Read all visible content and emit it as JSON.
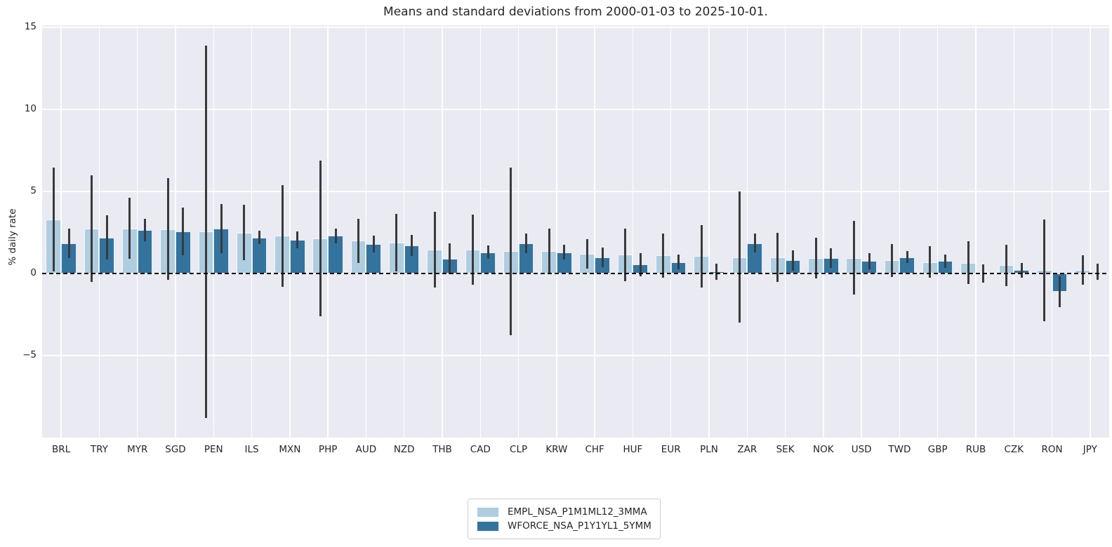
{
  "title": "Means and standard deviations from 2000-01-03 to 2025-10-01.",
  "ylabel": "% daily rate",
  "colors": {
    "plot_background": "#eaeaf2",
    "gridline": "#ffffff",
    "error_bar": "#3a3a3a",
    "zero_line": "#000000",
    "text": "#262626",
    "legend_border": "#cccccc",
    "legend_background": "#ffffff"
  },
  "chart_data": {
    "type": "bar",
    "title": "Means and standard deviations from 2000-01-03 to 2025-10-01.",
    "xlabel": "",
    "ylabel": "% daily rate",
    "ylim": [
      -10.0,
      15.13
    ],
    "yticks": [
      {
        "v": 15,
        "label": "15"
      },
      {
        "v": 10,
        "label": "10"
      },
      {
        "v": 5,
        "label": "5"
      },
      {
        "v": 0,
        "label": "0"
      },
      {
        "v": -5,
        "label": "−5"
      }
    ],
    "grid": true,
    "zero_line_dashed": true,
    "legend_position": "lower center",
    "categories": [
      "BRL",
      "TRY",
      "MYR",
      "SGD",
      "PEN",
      "ILS",
      "MXN",
      "PHP",
      "AUD",
      "NZD",
      "THB",
      "CAD",
      "CLP",
      "KRW",
      "CHF",
      "HUF",
      "EUR",
      "PLN",
      "ZAR",
      "SEK",
      "NOK",
      "USD",
      "TWD",
      "GBP",
      "RUB",
      "CZK",
      "RON",
      "JPY"
    ],
    "series": [
      {
        "name": "EMPL_NSA_P1M1ML12_3MMA",
        "color": "#aecde1",
        "means": [
          3.3,
          2.75,
          2.75,
          2.7,
          2.55,
          2.5,
          2.3,
          2.15,
          2.0,
          1.9,
          1.45,
          1.45,
          1.35,
          1.35,
          1.2,
          1.15,
          1.1,
          1.05,
          1.0,
          1.0,
          0.95,
          0.95,
          0.8,
          0.7,
          0.65,
          0.5,
          0.2,
          0.2
        ],
        "sds": [
          3.15,
          3.25,
          1.85,
          3.1,
          11.35,
          1.7,
          3.1,
          4.75,
          1.35,
          1.75,
          2.3,
          2.15,
          5.1,
          1.4,
          0.9,
          1.6,
          1.35,
          1.9,
          4.0,
          1.5,
          1.25,
          2.25,
          1.0,
          0.95,
          1.3,
          1.25,
          3.1,
          0.9
        ]
      },
      {
        "name": "WFORCE_NSA_P1Y1YL1_5YMM",
        "color": "#33739e",
        "means": [
          1.85,
          2.2,
          2.65,
          2.55,
          2.75,
          2.2,
          2.05,
          2.3,
          1.8,
          1.7,
          0.9,
          1.3,
          1.85,
          1.3,
          1.0,
          0.55,
          0.7,
          0.12,
          1.85,
          0.8,
          0.95,
          0.75,
          1.0,
          0.75,
          0.0,
          0.2,
          -1.1,
          0.1
        ],
        "sds": [
          0.9,
          1.35,
          0.7,
          1.45,
          1.5,
          0.4,
          0.5,
          0.45,
          0.5,
          0.65,
          0.95,
          0.4,
          0.6,
          0.45,
          0.6,
          0.7,
          0.45,
          0.5,
          0.57,
          0.62,
          0.6,
          0.5,
          0.35,
          0.4,
          0.55,
          0.45,
          0.95,
          0.5
        ]
      }
    ]
  }
}
